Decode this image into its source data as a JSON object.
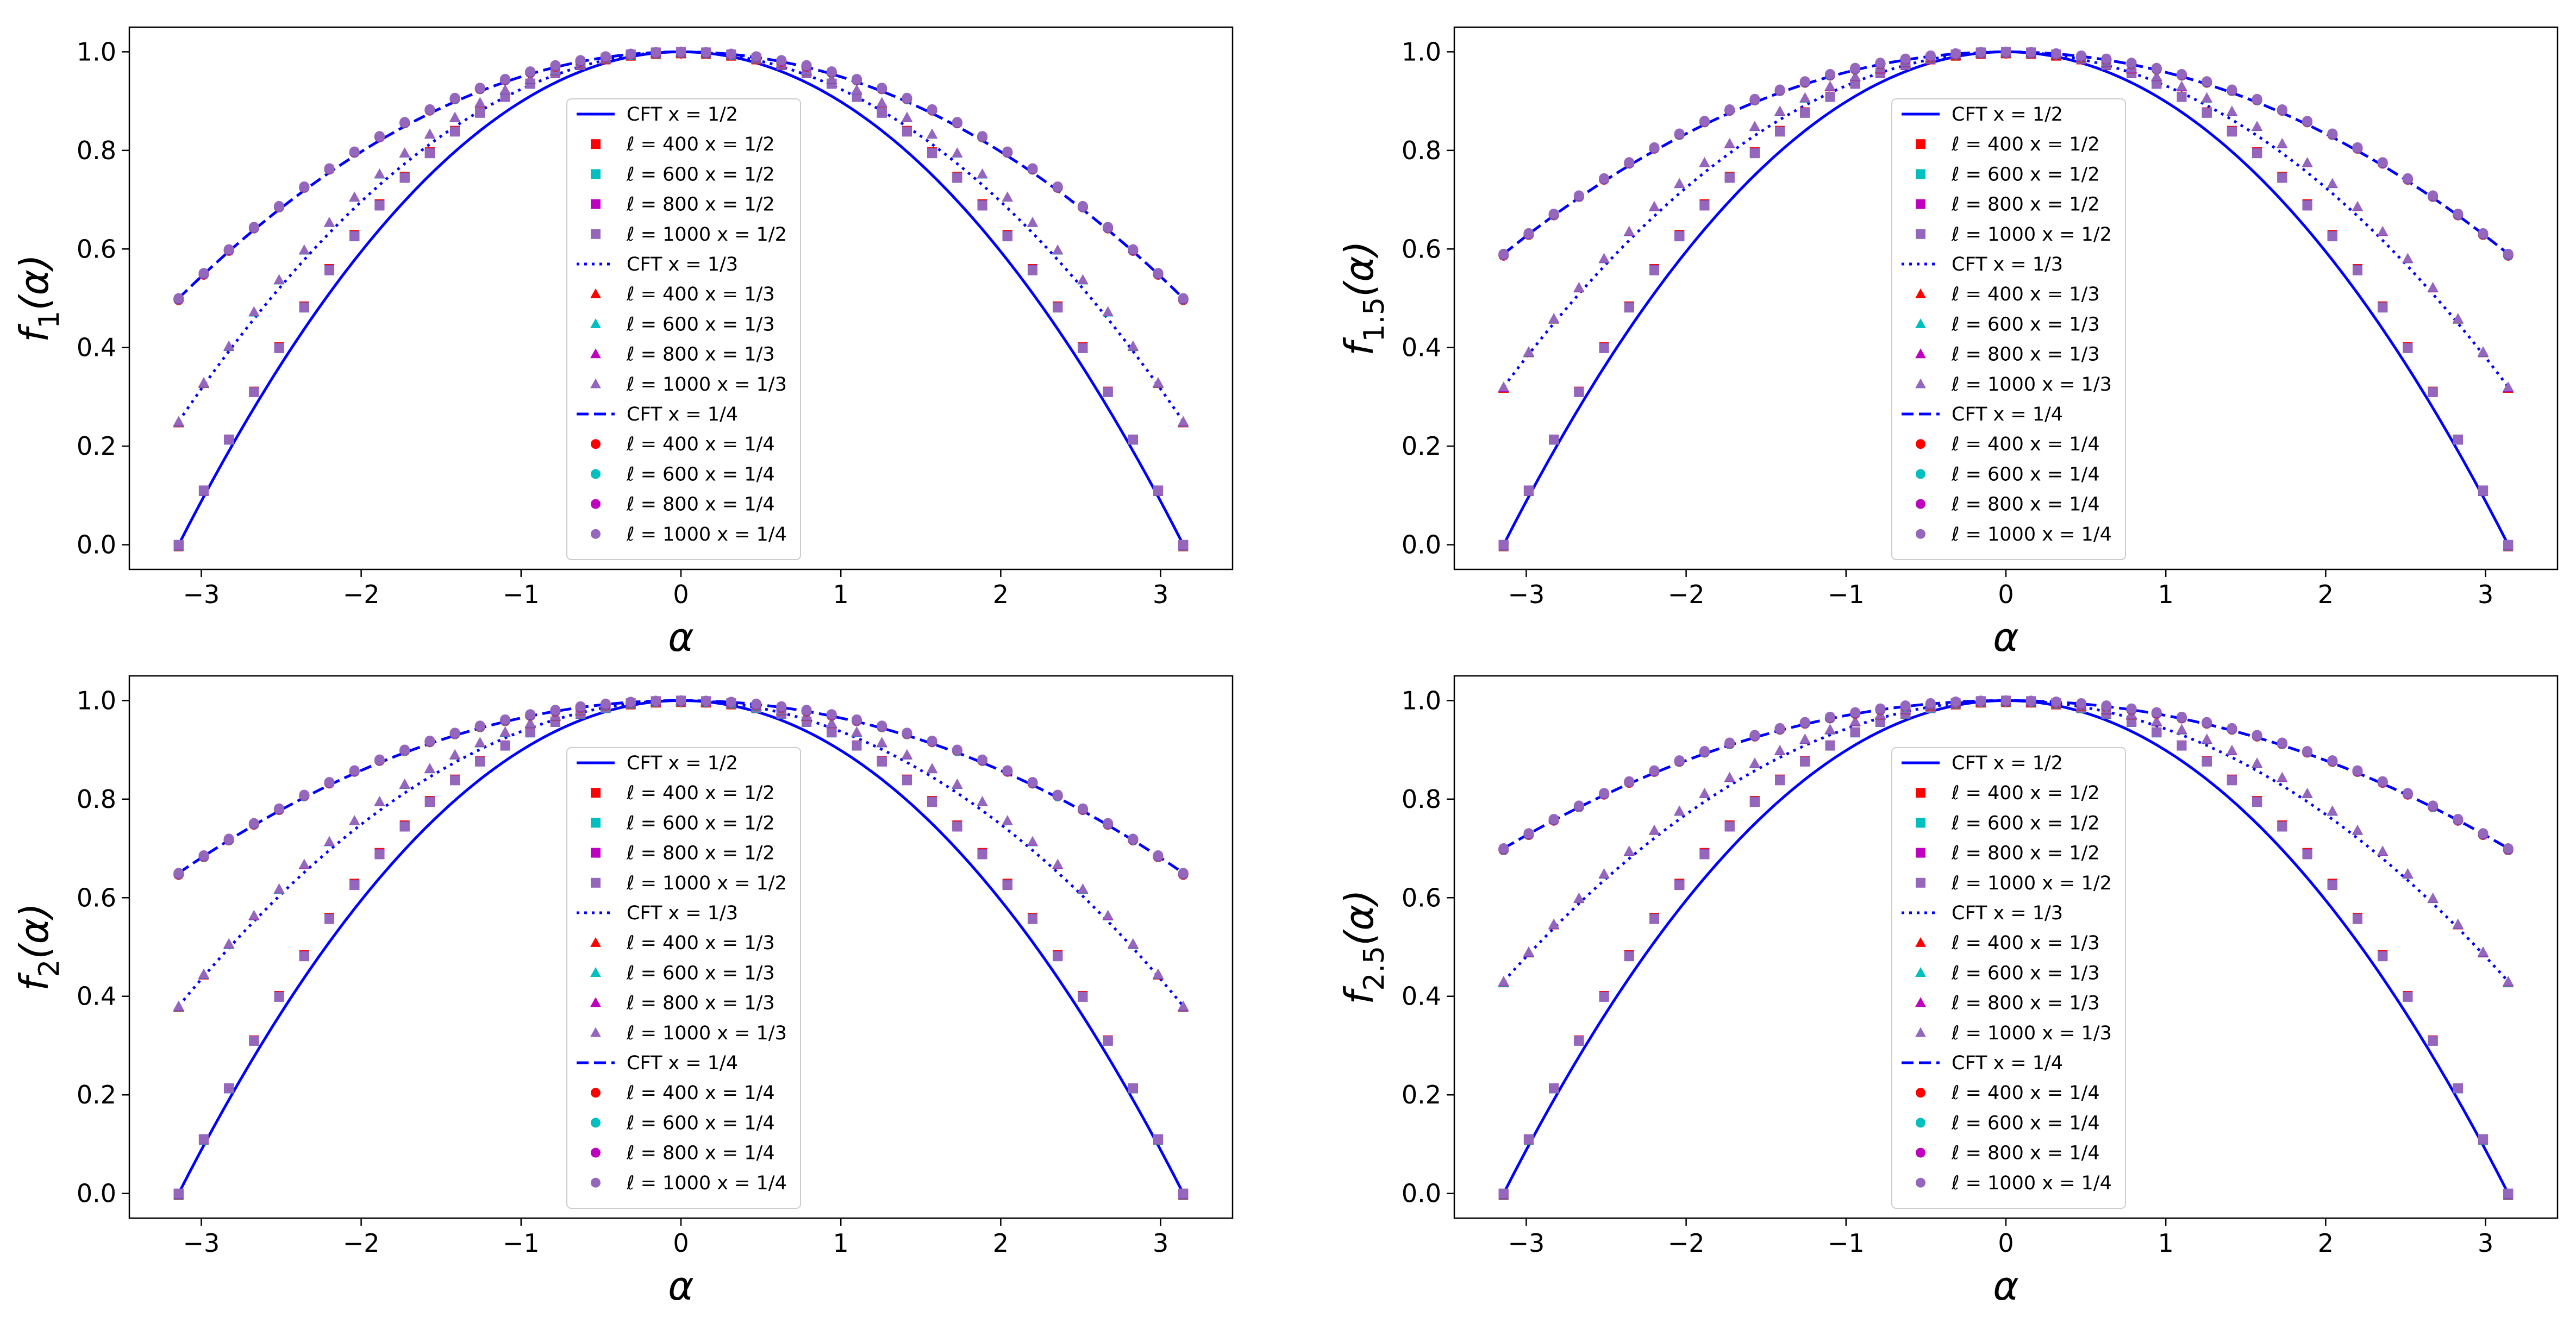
{
  "figure": {
    "description_free": true
  },
  "colors": {
    "cft": "#0000ff",
    "l400": "#ff0000",
    "l600": "#00bfbf",
    "l800": "#bf00bf",
    "l1000": "#9467bd",
    "frame": "#000000"
  },
  "chart_data": [
    {
      "type": "line",
      "id": "f1",
      "n": 1,
      "ylabel_main": "f",
      "ylabel_sub": "1",
      "ylabel_arg": "(α)",
      "xlabel": "α",
      "xlim": [
        -3.45,
        3.45
      ],
      "ylim": [
        -0.05,
        1.05
      ],
      "xticks": [
        -3,
        -2,
        -1,
        0,
        1,
        2,
        3
      ],
      "xtick_labels": [
        "−3",
        "−2",
        "−1",
        "0",
        "1",
        "2",
        "3"
      ],
      "yticks": [
        0,
        0.2,
        0.4,
        0.6,
        0.8,
        1.0
      ],
      "ytick_labels": [
        "0.0",
        "0.2",
        "0.4",
        "0.6",
        "0.8",
        "1.0"
      ],
      "legend_position": "center",
      "x_values": "α ∈ [−π, π], 41 equally spaced samples",
      "series": [
        {
          "name": "CFT x = 1/2",
          "kind": "cft",
          "x": "1/2",
          "style": "solid",
          "endpoint": 0.0
        },
        {
          "name": "ℓ = 400 x = 1/2",
          "kind": "lattice",
          "x": "1/2",
          "ell": 400,
          "marker": "square",
          "endpoint": 0.0
        },
        {
          "name": "ℓ = 600 x = 1/2",
          "kind": "lattice",
          "x": "1/2",
          "ell": 600,
          "marker": "square",
          "endpoint": 0.0
        },
        {
          "name": "ℓ = 800 x = 1/2",
          "kind": "lattice",
          "x": "1/2",
          "ell": 800,
          "marker": "square",
          "endpoint": 0.0
        },
        {
          "name": "ℓ = 1000 x = 1/2",
          "kind": "lattice",
          "x": "1/2",
          "ell": 1000,
          "marker": "square",
          "endpoint": 0.0
        },
        {
          "name": "CFT x = 1/3",
          "kind": "cft",
          "x": "1/3",
          "style": "dotted",
          "endpoint": 0.25
        },
        {
          "name": "ℓ = 400 x = 1/3",
          "kind": "lattice",
          "x": "1/3",
          "ell": 400,
          "marker": "triangle",
          "endpoint": 0.25
        },
        {
          "name": "ℓ = 600 x = 1/3",
          "kind": "lattice",
          "x": "1/3",
          "ell": 600,
          "marker": "triangle",
          "endpoint": 0.25
        },
        {
          "name": "ℓ = 800 x = 1/3",
          "kind": "lattice",
          "x": "1/3",
          "ell": 800,
          "marker": "triangle",
          "endpoint": 0.25
        },
        {
          "name": "ℓ = 1000 x = 1/3",
          "kind": "lattice",
          "x": "1/3",
          "ell": 1000,
          "marker": "triangle",
          "endpoint": 0.25
        },
        {
          "name": "CFT x = 1/4",
          "kind": "cft",
          "x": "1/4",
          "style": "dashed",
          "endpoint": 0.5
        },
        {
          "name": "ℓ = 400 x = 1/4",
          "kind": "lattice",
          "x": "1/4",
          "ell": 400,
          "marker": "circle",
          "endpoint": 0.5
        },
        {
          "name": "ℓ = 600 x = 1/4",
          "kind": "lattice",
          "x": "1/4",
          "ell": 600,
          "marker": "circle",
          "endpoint": 0.5
        },
        {
          "name": "ℓ = 800 x = 1/4",
          "kind": "lattice",
          "x": "1/4",
          "ell": 800,
          "marker": "circle",
          "endpoint": 0.5
        },
        {
          "name": "ℓ = 1000 x = 1/4",
          "kind": "lattice",
          "x": "1/4",
          "ell": 1000,
          "marker": "circle",
          "endpoint": 0.5
        }
      ]
    },
    {
      "type": "line",
      "id": "f1.5",
      "n": 1.5,
      "ylabel_main": "f",
      "ylabel_sub": "1.5",
      "ylabel_arg": "(α)",
      "xlabel": "α",
      "xlim": [
        -3.45,
        3.45
      ],
      "ylim": [
        -0.05,
        1.05
      ],
      "xticks": [
        -3,
        -2,
        -1,
        0,
        1,
        2,
        3
      ],
      "xtick_labels": [
        "−3",
        "−2",
        "−1",
        "0",
        "1",
        "2",
        "3"
      ],
      "yticks": [
        0,
        0.2,
        0.4,
        0.6,
        0.8,
        1.0
      ],
      "ytick_labels": [
        "0.0",
        "0.2",
        "0.4",
        "0.6",
        "0.8",
        "1.0"
      ],
      "legend_position": "center",
      "x_values": "α ∈ [−π, π], 41 equally spaced samples",
      "series": [
        {
          "name": "CFT x = 1/2",
          "kind": "cft",
          "x": "1/2",
          "style": "solid",
          "endpoint": 0.0
        },
        {
          "name": "ℓ = 400 x = 1/2",
          "kind": "lattice",
          "x": "1/2",
          "ell": 400,
          "marker": "square",
          "endpoint": 0.0
        },
        {
          "name": "ℓ = 600 x = 1/2",
          "kind": "lattice",
          "x": "1/2",
          "ell": 600,
          "marker": "square",
          "endpoint": 0.0
        },
        {
          "name": "ℓ = 800 x = 1/2",
          "kind": "lattice",
          "x": "1/2",
          "ell": 800,
          "marker": "square",
          "endpoint": 0.0
        },
        {
          "name": "ℓ = 1000 x = 1/2",
          "kind": "lattice",
          "x": "1/2",
          "ell": 1000,
          "marker": "square",
          "endpoint": 0.0
        },
        {
          "name": "CFT x = 1/3",
          "kind": "cft",
          "x": "1/3",
          "style": "dotted",
          "endpoint": 0.32
        },
        {
          "name": "ℓ = 400 x = 1/3",
          "kind": "lattice",
          "x": "1/3",
          "ell": 400,
          "marker": "triangle",
          "endpoint": 0.32
        },
        {
          "name": "ℓ = 600 x = 1/3",
          "kind": "lattice",
          "x": "1/3",
          "ell": 600,
          "marker": "triangle",
          "endpoint": 0.32
        },
        {
          "name": "ℓ = 800 x = 1/3",
          "kind": "lattice",
          "x": "1/3",
          "ell": 800,
          "marker": "triangle",
          "endpoint": 0.32
        },
        {
          "name": "ℓ = 1000 x = 1/3",
          "kind": "lattice",
          "x": "1/3",
          "ell": 1000,
          "marker": "triangle",
          "endpoint": 0.32
        },
        {
          "name": "CFT x = 1/4",
          "kind": "cft",
          "x": "1/4",
          "style": "dashed",
          "endpoint": 0.59
        },
        {
          "name": "ℓ = 400 x = 1/4",
          "kind": "lattice",
          "x": "1/4",
          "ell": 400,
          "marker": "circle",
          "endpoint": 0.59
        },
        {
          "name": "ℓ = 600 x = 1/4",
          "kind": "lattice",
          "x": "1/4",
          "ell": 600,
          "marker": "circle",
          "endpoint": 0.59
        },
        {
          "name": "ℓ = 800 x = 1/4",
          "kind": "lattice",
          "x": "1/4",
          "ell": 800,
          "marker": "circle",
          "endpoint": 0.59
        },
        {
          "name": "ℓ = 1000 x = 1/4",
          "kind": "lattice",
          "x": "1/4",
          "ell": 1000,
          "marker": "circle",
          "endpoint": 0.59
        }
      ]
    },
    {
      "type": "line",
      "id": "f2",
      "n": 2,
      "ylabel_main": "f",
      "ylabel_sub": "2",
      "ylabel_arg": "(α)",
      "xlabel": "α",
      "xlim": [
        -3.45,
        3.45
      ],
      "ylim": [
        -0.05,
        1.05
      ],
      "xticks": [
        -3,
        -2,
        -1,
        0,
        1,
        2,
        3
      ],
      "xtick_labels": [
        "−3",
        "−2",
        "−1",
        "0",
        "1",
        "2",
        "3"
      ],
      "yticks": [
        0,
        0.2,
        0.4,
        0.6,
        0.8,
        1.0
      ],
      "ytick_labels": [
        "0.0",
        "0.2",
        "0.4",
        "0.6",
        "0.8",
        "1.0"
      ],
      "legend_position": "center",
      "x_values": "α ∈ [−π, π], 41 equally spaced samples",
      "series": [
        {
          "name": "CFT x = 1/2",
          "kind": "cft",
          "x": "1/2",
          "style": "solid",
          "endpoint": 0.0
        },
        {
          "name": "ℓ = 400 x = 1/2",
          "kind": "lattice",
          "x": "1/2",
          "ell": 400,
          "marker": "square",
          "endpoint": 0.0
        },
        {
          "name": "ℓ = 600 x = 1/2",
          "kind": "lattice",
          "x": "1/2",
          "ell": 600,
          "marker": "square",
          "endpoint": 0.0
        },
        {
          "name": "ℓ = 800 x = 1/2",
          "kind": "lattice",
          "x": "1/2",
          "ell": 800,
          "marker": "square",
          "endpoint": 0.0
        },
        {
          "name": "ℓ = 1000 x = 1/2",
          "kind": "lattice",
          "x": "1/2",
          "ell": 1000,
          "marker": "square",
          "endpoint": 0.0
        },
        {
          "name": "CFT x = 1/3",
          "kind": "cft",
          "x": "1/3",
          "style": "dotted",
          "endpoint": 0.38
        },
        {
          "name": "ℓ = 400 x = 1/3",
          "kind": "lattice",
          "x": "1/3",
          "ell": 400,
          "marker": "triangle",
          "endpoint": 0.38
        },
        {
          "name": "ℓ = 600 x = 1/3",
          "kind": "lattice",
          "x": "1/3",
          "ell": 600,
          "marker": "triangle",
          "endpoint": 0.38
        },
        {
          "name": "ℓ = 800 x = 1/3",
          "kind": "lattice",
          "x": "1/3",
          "ell": 800,
          "marker": "triangle",
          "endpoint": 0.38
        },
        {
          "name": "ℓ = 1000 x = 1/3",
          "kind": "lattice",
          "x": "1/3",
          "ell": 1000,
          "marker": "triangle",
          "endpoint": 0.38
        },
        {
          "name": "CFT x = 1/4",
          "kind": "cft",
          "x": "1/4",
          "style": "dashed",
          "endpoint": 0.65
        },
        {
          "name": "ℓ = 400 x = 1/4",
          "kind": "lattice",
          "x": "1/4",
          "ell": 400,
          "marker": "circle",
          "endpoint": 0.65
        },
        {
          "name": "ℓ = 600 x = 1/4",
          "kind": "lattice",
          "x": "1/4",
          "ell": 600,
          "marker": "circle",
          "endpoint": 0.65
        },
        {
          "name": "ℓ = 800 x = 1/4",
          "kind": "lattice",
          "x": "1/4",
          "ell": 800,
          "marker": "circle",
          "endpoint": 0.65
        },
        {
          "name": "ℓ = 1000 x = 1/4",
          "kind": "lattice",
          "x": "1/4",
          "ell": 1000,
          "marker": "circle",
          "endpoint": 0.65
        }
      ]
    },
    {
      "type": "line",
      "id": "f2.5",
      "n": 2.5,
      "ylabel_main": "f",
      "ylabel_sub": "2.5",
      "ylabel_arg": "(α)",
      "xlabel": "α",
      "xlim": [
        -3.45,
        3.45
      ],
      "ylim": [
        -0.05,
        1.05
      ],
      "xticks": [
        -3,
        -2,
        -1,
        0,
        1,
        2,
        3
      ],
      "xtick_labels": [
        "−3",
        "−2",
        "−1",
        "0",
        "1",
        "2",
        "3"
      ],
      "yticks": [
        0,
        0.2,
        0.4,
        0.6,
        0.8,
        1.0
      ],
      "ytick_labels": [
        "0.0",
        "0.2",
        "0.4",
        "0.6",
        "0.8",
        "1.0"
      ],
      "legend_position": "center",
      "x_values": "α ∈ [−π, π], 41 equally spaced samples",
      "series": [
        {
          "name": "CFT x = 1/2",
          "kind": "cft",
          "x": "1/2",
          "style": "solid",
          "endpoint": 0.0
        },
        {
          "name": "ℓ = 400 x = 1/2",
          "kind": "lattice",
          "x": "1/2",
          "ell": 400,
          "marker": "square",
          "endpoint": 0.0
        },
        {
          "name": "ℓ = 600 x = 1/2",
          "kind": "lattice",
          "x": "1/2",
          "ell": 600,
          "marker": "square",
          "endpoint": 0.0
        },
        {
          "name": "ℓ = 800 x = 1/2",
          "kind": "lattice",
          "x": "1/2",
          "ell": 800,
          "marker": "square",
          "endpoint": 0.0
        },
        {
          "name": "ℓ = 1000 x = 1/2",
          "kind": "lattice",
          "x": "1/2",
          "ell": 1000,
          "marker": "square",
          "endpoint": 0.0
        },
        {
          "name": "CFT x = 1/3",
          "kind": "cft",
          "x": "1/3",
          "style": "dotted",
          "endpoint": 0.43
        },
        {
          "name": "ℓ = 400 x = 1/3",
          "kind": "lattice",
          "x": "1/3",
          "ell": 400,
          "marker": "triangle",
          "endpoint": 0.43
        },
        {
          "name": "ℓ = 600 x = 1/3",
          "kind": "lattice",
          "x": "1/3",
          "ell": 600,
          "marker": "triangle",
          "endpoint": 0.43
        },
        {
          "name": "ℓ = 800 x = 1/3",
          "kind": "lattice",
          "x": "1/3",
          "ell": 800,
          "marker": "triangle",
          "endpoint": 0.43
        },
        {
          "name": "ℓ = 1000 x = 1/3",
          "kind": "lattice",
          "x": "1/3",
          "ell": 1000,
          "marker": "triangle",
          "endpoint": 0.43
        },
        {
          "name": "CFT x = 1/4",
          "kind": "cft",
          "x": "1/4",
          "style": "dashed",
          "endpoint": 0.7
        },
        {
          "name": "ℓ = 400 x = 1/4",
          "kind": "lattice",
          "x": "1/4",
          "ell": 400,
          "marker": "circle",
          "endpoint": 0.7
        },
        {
          "name": "ℓ = 600 x = 1/4",
          "kind": "lattice",
          "x": "1/4",
          "ell": 600,
          "marker": "circle",
          "endpoint": 0.7
        },
        {
          "name": "ℓ = 800 x = 1/4",
          "kind": "lattice",
          "x": "1/4",
          "ell": 800,
          "marker": "circle",
          "endpoint": 0.7
        },
        {
          "name": "ℓ = 1000 x = 1/4",
          "kind": "lattice",
          "x": "1/4",
          "ell": 1000,
          "marker": "circle",
          "endpoint": 0.7
        }
      ]
    }
  ]
}
